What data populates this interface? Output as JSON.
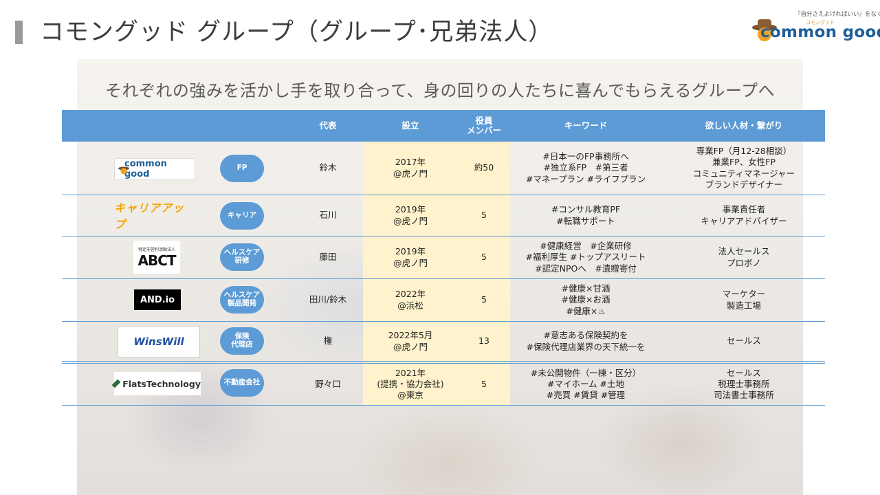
{
  "header": {
    "title": "コモングッド グループ（グループ･兄弟法人）"
  },
  "brand_logo": {
    "tagline": "『自分さえよければいい』をなくす",
    "kana": "コモングッド",
    "wordmark": "common good"
  },
  "subtitle": "それぞれの強みを活かし手を取り合って、身の回りの人たちに喜んでもらえるグループへ",
  "table": {
    "headers": {
      "representative": "代表",
      "established": "設立",
      "members": "役員\nメンバー",
      "keywords": "キーワード",
      "wanted": "欲しい人材・繋がり"
    },
    "rows": [
      {
        "logo_text": "common good",
        "category": "FP",
        "representative": "鈴木",
        "established": "2017年\n@虎ノ門",
        "members": "約50",
        "keywords": "#日本一のFP事務所へ\n#独立系FP　#第三者\n#マネープラン #ライフプラン",
        "wanted": "専業FP（月12-28相談）\n兼業FP、女性FP\nコミュニティマネージャー\nブランドデザイナー"
      },
      {
        "logo_text": "キャリアアップ",
        "category": "キャリア",
        "representative": "石川",
        "established": "2019年\n@虎ノ門",
        "members": "5",
        "keywords": "#コンサル教育PF\n#転職サポート",
        "wanted": "事業責任者\nキャリアアドバイザー"
      },
      {
        "logo_text": "ABCT",
        "logo_small": "特定非営利活動法人",
        "category": "ヘルスケア\n研修",
        "representative": "藤田",
        "established": "2019年\n@虎ノ門",
        "members": "5",
        "keywords": "#健康経営　#企業研修\n#福利厚生 #トップアスリート\n#認定NPOへ　#遺贈寄付",
        "wanted": "法人セールス\nプロボノ"
      },
      {
        "logo_text": "AND.io",
        "category": "ヘルスケア\n製品開発",
        "representative": "田川/鈴木",
        "established": "2022年\n@浜松",
        "members": "5",
        "keywords": "#健康×甘酒\n#健康×お酒\n#健康×♨",
        "wanted": "マーケター\n製造工場"
      },
      {
        "logo_text": "WinsWill",
        "category": "保険\n代理店",
        "representative": "権",
        "established": "2022年5月\n@虎ノ門",
        "members": "13",
        "keywords": "#意志ある保険契約を\n#保険代理店業界の天下統一を",
        "wanted": "セールス"
      },
      {
        "logo_text": "FlatsTechnology",
        "category": "不動産会社",
        "representative": "野々口",
        "established": "2021年\n(提携・協力会社)\n@東京",
        "members": "5",
        "keywords": "#未公開物件（一棟・区分）\n#マイホーム #土地\n#売買 #賃貸 #管理",
        "wanted": "セールス\n税理士事務所\n司法書士事務所"
      }
    ]
  },
  "colors": {
    "header_blue": "#5c9bd5",
    "setup_highlight": "#fff2cc",
    "brand_blue": "#1f5f99",
    "brand_orange": "#e8951f"
  }
}
